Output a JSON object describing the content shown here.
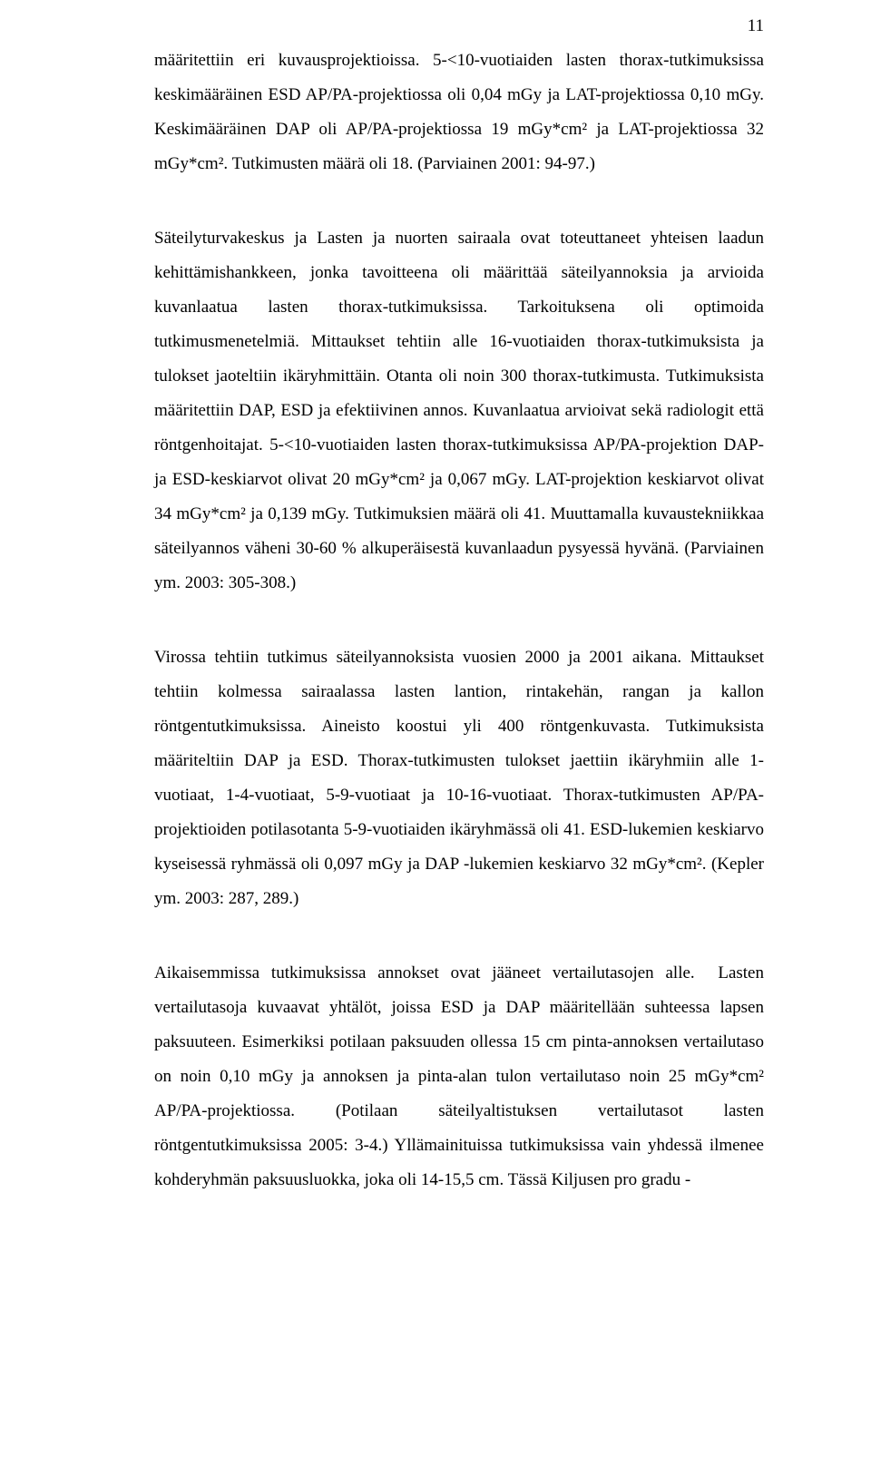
{
  "page_number": "11",
  "paragraphs": [
    "määritettiin eri kuvausprojektioissa. 5-<10-vuotiaiden lasten thorax-tutkimuksissa keskimääräinen ESD AP/PA-projektiossa oli 0,04 mGy ja LAT-projektiossa 0,10 mGy. Keskimääräinen DAP oli AP/PA-projektiossa 19 mGy*cm² ja LAT-projektiossa 32 mGy*cm². Tutkimusten määrä oli 18. (Parviainen 2001: 94-97.)",
    "Säteilyturvakeskus ja Lasten ja nuorten sairaala ovat toteuttaneet yhteisen laadun kehittämishankkeen, jonka tavoitteena oli määrittää säteilyannoksia ja arvioida kuvanlaatua lasten thorax-tutkimuksissa. Tarkoituksena oli optimoida tutkimusmenetelmiä. Mittaukset tehtiin alle 16-vuotiaiden thorax-tutkimuksista ja tulokset jaoteltiin ikäryhmittäin. Otanta oli noin 300 thorax-tutkimusta. Tutkimuksista määritettiin DAP, ESD ja efektiivinen annos. Kuvanlaatua arvioivat sekä radiologit että röntgenhoitajat. 5-<10-vuotiaiden lasten thorax-tutkimuksissa AP/PA-projektion DAP- ja ESD-keskiarvot olivat 20 mGy*cm² ja 0,067 mGy. LAT-projektion keskiarvot olivat 34 mGy*cm² ja 0,139 mGy. Tutkimuksien määrä oli 41. Muuttamalla kuvaustekniikkaa säteilyannos väheni 30-60 % alkuperäisestä kuvanlaadun pysyessä hyvänä. (Parviainen ym. 2003: 305-308.)",
    "Virossa tehtiin tutkimus säteilyannoksista vuosien 2000 ja 2001 aikana. Mittaukset tehtiin kolmessa sairaalassa lasten lantion, rintakehän, rangan ja kallon röntgentutkimuksissa. Aineisto koostui yli 400 röntgenkuvasta. Tutkimuksista määriteltiin DAP ja ESD. Thorax-tutkimusten tulokset jaettiin ikäryhmiin alle 1-vuotiaat, 1-4-vuotiaat, 5-9-vuotiaat ja 10-16-vuotiaat. Thorax-tutkimusten AP/PA-projektioiden potilasotanta 5-9-vuotiaiden ikäryhmässä oli 41. ESD-lukemien keskiarvo kyseisessä ryhmässä oli 0,097 mGy ja DAP -lukemien keskiarvo 32 mGy*cm². (Kepler ym. 2003: 287, 289.)",
    "Aikaisemmissa tutkimuksissa annokset ovat jääneet vertailutasojen alle.  Lasten vertailutasoja kuvaavat yhtälöt, joissa ESD ja DAP määritellään suhteessa lapsen paksuuteen. Esimerkiksi potilaan paksuuden ollessa 15 cm pinta-annoksen vertailutaso on noin 0,10 mGy ja annoksen ja pinta-alan tulon vertailutaso noin 25 mGy*cm² AP/PA-projektiossa. (Potilaan säteilyaltistuksen vertailutasot lasten röntgentutkimuksissa 2005: 3-4.) Yllämainituissa tutkimuksissa vain yhdessä ilmenee kohderyhmän paksuusluokka, joka oli 14-15,5 cm. Tässä Kiljusen pro gradu -"
  ]
}
